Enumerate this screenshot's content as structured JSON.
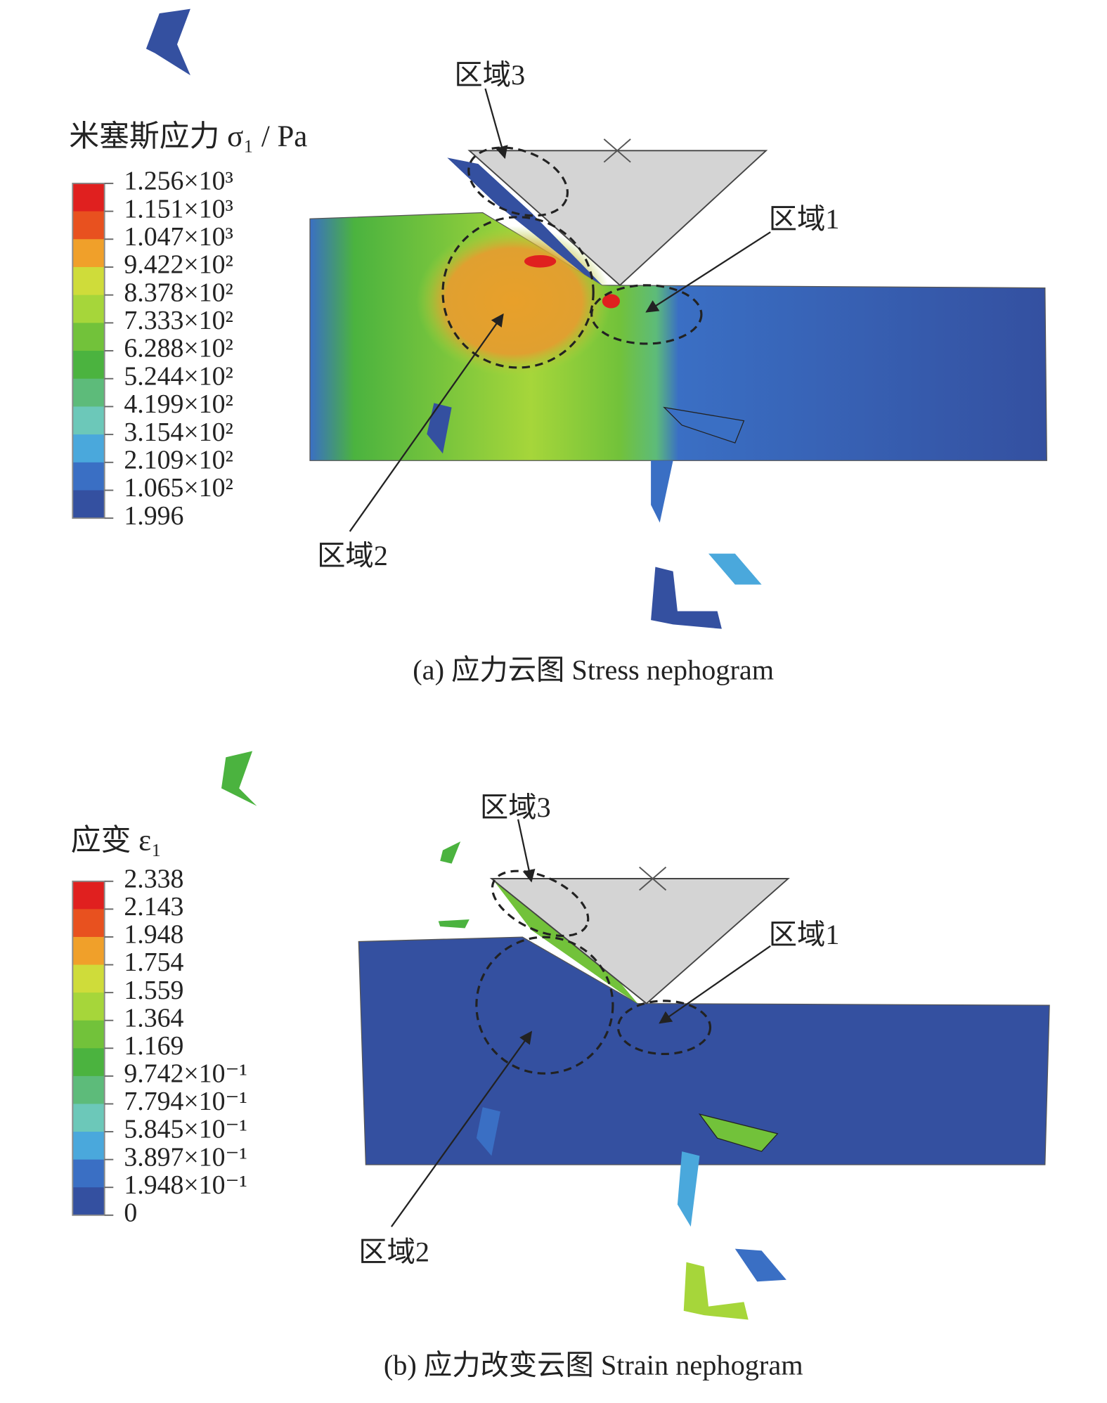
{
  "panels": [
    {
      "legend": {
        "title": "米塞斯应力 σ₁ / Pa",
        "labels": [
          "1.256×10³",
          "1.151×10³",
          "1.047×10³",
          "9.422×10²",
          "8.378×10²",
          "7.333×10²",
          "6.288×10²",
          "5.244×10²",
          "4.199×10²",
          "3.154×10²",
          "2.109×10²",
          "1.065×10²",
          "1.996"
        ],
        "colors": [
          "#e0201f",
          "#e8511f",
          "#f0a02a",
          "#cfdc3a",
          "#a6d63a",
          "#72c23a",
          "#4bb33f",
          "#5dbb7a",
          "#6cc8b9",
          "#4aa8dc",
          "#3a6fc4",
          "#3450a0"
        ]
      },
      "regions": [
        "区域1",
        "区域2",
        "区域3"
      ],
      "caption": "(a) 应力云图 Stress nephogram"
    },
    {
      "legend": {
        "title": "应变 ε₁",
        "labels": [
          "2.338",
          "2.143",
          "1.948",
          "1.754",
          "1.559",
          "1.364",
          "1.169",
          "9.742×10⁻¹",
          "7.794×10⁻¹",
          "5.845×10⁻¹",
          "3.897×10⁻¹",
          "1.948×10⁻¹",
          "0"
        ],
        "colors": [
          "#e0201f",
          "#e8511f",
          "#f0a02a",
          "#cfdc3a",
          "#a6d63a",
          "#72c23a",
          "#4bb33f",
          "#5dbb7a",
          "#6cc8b9",
          "#4aa8dc",
          "#3a6fc4",
          "#3450a0"
        ]
      },
      "regions": [
        "区域1",
        "区域2",
        "区域3"
      ],
      "caption": "(b) 应力改变云图 Strain nephogram"
    }
  ]
}
